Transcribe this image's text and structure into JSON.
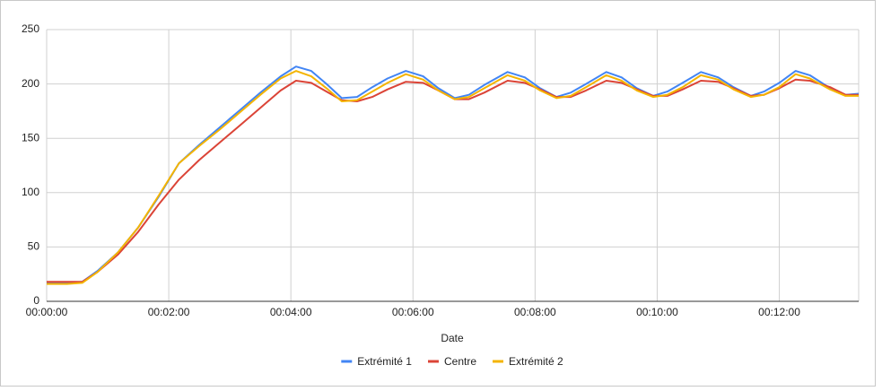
{
  "chart_data": {
    "type": "line",
    "x_label": "Date",
    "x": [
      0,
      20,
      35,
      50,
      70,
      90,
      110,
      130,
      150,
      170,
      190,
      210,
      230,
      245,
      260,
      275,
      290,
      305,
      320,
      335,
      353,
      370,
      385,
      401,
      415,
      430,
      453,
      470,
      485,
      501,
      515,
      530,
      550,
      565,
      580,
      596,
      610,
      625,
      643,
      660,
      675,
      692,
      705,
      720,
      736,
      750,
      770,
      785,
      798
    ],
    "series": [
      {
        "name": "Extrémité 1",
        "color": "#4285f4",
        "values": [
          17,
          17,
          18,
          28,
          45,
          68,
          96,
          127,
          144,
          160,
          176,
          192,
          207,
          216,
          212,
          200,
          187,
          188,
          197,
          205,
          212,
          207,
          196,
          187,
          190,
          199,
          211,
          206,
          196,
          188,
          192,
          200,
          211,
          206,
          196,
          189,
          193,
          201,
          211,
          206,
          197,
          189,
          193,
          201,
          212,
          208,
          196,
          190,
          191
        ]
      },
      {
        "name": "Centre",
        "color": "#db4437",
        "values": [
          18,
          18,
          18,
          27,
          43,
          64,
          89,
          112,
          130,
          146,
          162,
          178,
          194,
          203,
          201,
          193,
          185,
          184,
          188,
          195,
          202,
          201,
          194,
          186,
          186,
          192,
          203,
          201,
          195,
          188,
          188,
          194,
          203,
          201,
          195,
          189,
          189,
          195,
          203,
          202,
          196,
          189,
          190,
          196,
          204,
          203,
          197,
          190,
          190
        ]
      },
      {
        "name": "Extrémité 2",
        "color": "#f4b400",
        "values": [
          16,
          16,
          17,
          27,
          45,
          68,
          97,
          127,
          143,
          158,
          174,
          190,
          205,
          212,
          207,
          196,
          184,
          185,
          193,
          201,
          209,
          204,
          194,
          186,
          188,
          196,
          208,
          203,
          194,
          187,
          189,
          197,
          208,
          203,
          194,
          188,
          190,
          197,
          208,
          204,
          195,
          188,
          190,
          197,
          209,
          205,
          195,
          189,
          189
        ]
      }
    ],
    "xlim": [
      0,
      798
    ],
    "xticks": [
      {
        "value": 0,
        "label": "00:00:00"
      },
      {
        "value": 120,
        "label": "00:02:00"
      },
      {
        "value": 240,
        "label": "00:04:00"
      },
      {
        "value": 360,
        "label": "00:06:00"
      },
      {
        "value": 480,
        "label": "00:08:00"
      },
      {
        "value": 600,
        "label": "00:10:00"
      },
      {
        "value": 720,
        "label": "00:12:00"
      }
    ],
    "ylim": [
      0,
      250
    ],
    "yticks": [
      0,
      50,
      100,
      150,
      200,
      250
    ],
    "grid": true,
    "legend": "bottom"
  }
}
